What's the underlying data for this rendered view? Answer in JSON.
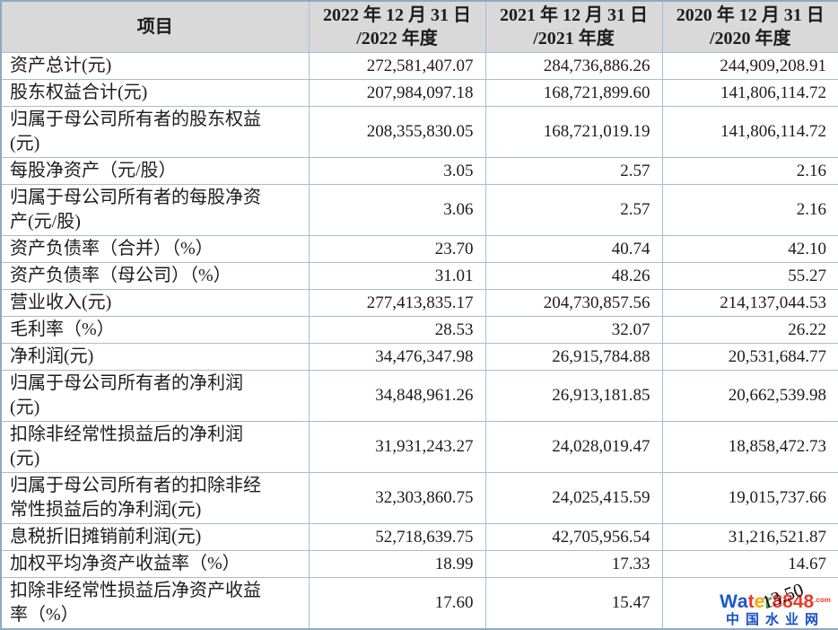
{
  "table": {
    "columns": [
      "项目",
      "2022 年 12 月 31 日\n/2022 年度",
      "2021 年 12 月 31 日\n/2021 年度",
      "2020 年 12 月 31 日\n/2020 年度"
    ],
    "rows": [
      {
        "label": "资产总计(元)",
        "values": [
          "272,581,407.07",
          "284,736,886.26",
          "244,909,208.91"
        ]
      },
      {
        "label": "股东权益合计(元)",
        "values": [
          "207,984,097.18",
          "168,721,899.60",
          "141,806,114.72"
        ]
      },
      {
        "label": "归属于母公司所有者的股东权益\n(元)",
        "values": [
          "208,355,830.05",
          "168,721,019.19",
          "141,806,114.72"
        ]
      },
      {
        "label": "每股净资产（元/股）",
        "values": [
          "3.05",
          "2.57",
          "2.16"
        ]
      },
      {
        "label": "归属于母公司所有者的每股净资\n产(元/股)",
        "values": [
          "3.06",
          "2.57",
          "2.16"
        ]
      },
      {
        "label": "资产负债率（合并）（%）",
        "values": [
          "23.70",
          "40.74",
          "42.10"
        ]
      },
      {
        "label": "资产负债率（母公司）（%）",
        "values": [
          "31.01",
          "48.26",
          "55.27"
        ]
      },
      {
        "label": "营业收入(元)",
        "values": [
          "277,413,835.17",
          "204,730,857.56",
          "214,137,044.53"
        ]
      },
      {
        "label": "毛利率（%）",
        "values": [
          "28.53",
          "32.07",
          "26.22"
        ]
      },
      {
        "label": "净利润(元)",
        "values": [
          "34,476,347.98",
          "26,915,784.88",
          "20,531,684.77"
        ]
      },
      {
        "label": "归属于母公司所有者的净利润\n(元)",
        "values": [
          "34,848,961.26",
          "26,913,181.85",
          "20,662,539.98"
        ]
      },
      {
        "label": "扣除非经常性损益后的净利润\n(元)",
        "values": [
          "31,931,243.27",
          "24,028,019.47",
          "18,858,472.73"
        ]
      },
      {
        "label": "归属于母公司所有者的扣除非经\n常性损益后的净利润(元)",
        "values": [
          "32,303,860.75",
          "24,025,415.59",
          "19,015,737.66"
        ]
      },
      {
        "label": "息税折旧摊销前利润(元)",
        "values": [
          "52,718,639.75",
          "42,705,956.54",
          "31,216,521.87"
        ]
      },
      {
        "label": "加权平均净资产收益率（%）",
        "values": [
          "18.99",
          "17.33",
          "14.67"
        ]
      },
      {
        "label": "扣除非经常性损益后净资产收益\n率（%）",
        "values": [
          "17.60",
          "15.47",
          "13.50"
        ]
      }
    ]
  },
  "watermark": {
    "letters": [
      {
        "ch": "W",
        "color": "#1b57d0"
      },
      {
        "ch": "a",
        "color": "#1b57d0"
      },
      {
        "ch": "t",
        "color": "#e8392b"
      },
      {
        "ch": "e",
        "color": "#f6a800"
      },
      {
        "ch": "r",
        "color": "#43a047"
      },
      {
        "ch": "8",
        "color": "#e8392b"
      },
      {
        "ch": "8",
        "color": "#e8392b"
      },
      {
        "ch": "4",
        "color": "#e8392b"
      },
      {
        "ch": "8",
        "color": "#e8392b"
      }
    ],
    "suffix": ".com",
    "subtitle": "中国水业网"
  },
  "colors": {
    "header_bg": "#d9d9d9",
    "border": "#a5bdd3",
    "watermark_blue": "#1550c8",
    "watermark_red": "#e8392b"
  }
}
